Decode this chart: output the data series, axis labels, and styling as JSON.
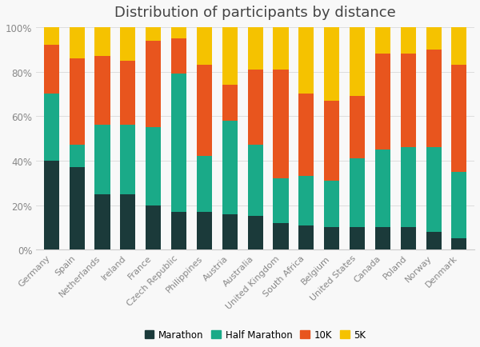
{
  "title": "Distribution of participants by distance",
  "categories": [
    "Germany",
    "Spain",
    "Netherlands",
    "Ireland",
    "France",
    "Czech Republic",
    "Philippines",
    "Austria",
    "Australia",
    "United Kingdom",
    "South Africa",
    "Belgium",
    "United States",
    "Canada",
    "Poland",
    "Norway",
    "Denmark"
  ],
  "marathon": [
    40,
    37,
    25,
    25,
    20,
    17,
    17,
    16,
    15,
    12,
    11,
    10,
    10,
    10,
    10,
    8,
    5
  ],
  "half_marathon": [
    30,
    10,
    31,
    31,
    35,
    62,
    25,
    42,
    32,
    20,
    22,
    21,
    31,
    35,
    36,
    38,
    30
  ],
  "ten_k": [
    22,
    39,
    31,
    29,
    39,
    16,
    41,
    16,
    34,
    49,
    37,
    36,
    28,
    43,
    42,
    44,
    48
  ],
  "five_k": [
    8,
    14,
    13,
    15,
    6,
    5,
    17,
    26,
    19,
    19,
    30,
    33,
    31,
    12,
    12,
    10,
    17
  ],
  "marathon_color": "#1b3a3a",
  "half_marathon_color": "#1aaa88",
  "ten_k_color": "#e8551e",
  "five_k_color": "#f5c200",
  "background_color": "#f8f8f8",
  "legend_labels": [
    "Marathon",
    "Half Marathon",
    "10K",
    "5K"
  ]
}
